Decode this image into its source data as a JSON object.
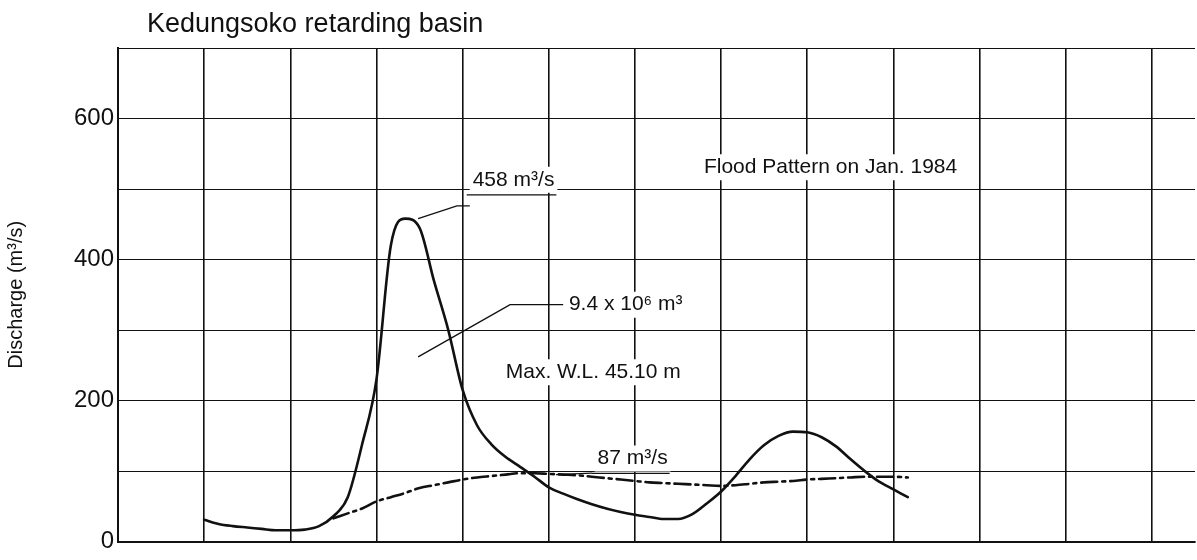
{
  "chart_data": {
    "type": "line",
    "title": "Kedungsoko retarding basin",
    "ylabel": "Discharge (m³/s)",
    "categories": [
      null,
      null,
      null,
      null,
      null,
      null,
      null,
      null,
      null,
      null,
      null,
      null,
      null,
      null,
      null,
      null,
      null,
      null,
      null,
      null,
      null,
      null,
      null,
      null,
      null,
      null,
      null,
      null,
      null,
      null,
      null,
      null,
      null,
      null,
      null,
      null,
      null,
      null,
      null,
      null,
      null,
      null,
      null,
      null,
      null,
      null,
      null,
      null,
      null,
      null,
      null,
      null,
      null,
      null,
      null,
      null,
      null,
      null,
      null,
      null,
      null,
      null,
      null,
      null,
      null,
      null,
      null,
      null,
      null,
      null,
      null,
      null,
      null,
      null,
      null,
      null
    ],
    "series": [
      {
        "color": "#111111",
        "line_style": "solid",
        "values": [
          null,
          null,
          null,
          null,
          null,
          null,
          31,
          25,
          22,
          20,
          18,
          16,
          16,
          17,
          22,
          36,
          63,
          138,
          230,
          420,
          458,
          445,
          370,
          300,
          215,
          165,
          138,
          120,
          106,
          92,
          77,
          68,
          60,
          53,
          47,
          42,
          38,
          35,
          32,
          32,
          39,
          54,
          71,
          93,
          117,
          137,
          150,
          156,
          155,
          148,
          135,
          117,
          100,
          85,
          74,
          63,
          null,
          null,
          null,
          null,
          null,
          null,
          null,
          null,
          null,
          null,
          null,
          null,
          null,
          null,
          null,
          null,
          null,
          null,
          null,
          null
        ]
      },
      {
        "color": "#111111",
        "line_style": "dashed",
        "values": [
          null,
          null,
          null,
          null,
          null,
          null,
          null,
          null,
          null,
          null,
          null,
          null,
          null,
          null,
          null,
          33,
          40,
          47,
          57,
          63,
          69,
          76,
          80,
          84,
          88,
          91,
          93,
          95,
          97,
          97,
          96,
          95,
          94,
          92,
          90,
          88,
          86,
          84,
          83,
          82,
          81,
          80,
          79,
          80,
          82,
          84,
          85,
          86,
          88,
          89,
          90,
          91,
          92,
          92,
          92,
          91,
          null,
          null,
          null,
          null,
          null,
          null,
          null,
          null,
          null,
          null,
          null,
          null,
          null,
          null,
          null,
          null,
          null,
          null,
          null,
          null
        ]
      }
    ],
    "ylim": [
      0,
      700
    ],
    "yticks": [
      0,
      {
        "value": 100,
        "label": null
      },
      200,
      {
        "value": 300,
        "label": null
      },
      400,
      {
        "value": 500,
        "label": null
      },
      600,
      {
        "value": 700,
        "label": null
      }
    ],
    "grid": true,
    "legend": false,
    "marker": "none",
    "tick_labels": "y",
    "annotations": [
      "458 m³/s",
      "9.4 x 10⁶ m³",
      "Max. W.L. 45.10 m",
      "87 m³/s",
      "Flood Pattern on Jan. 1984"
    ]
  }
}
